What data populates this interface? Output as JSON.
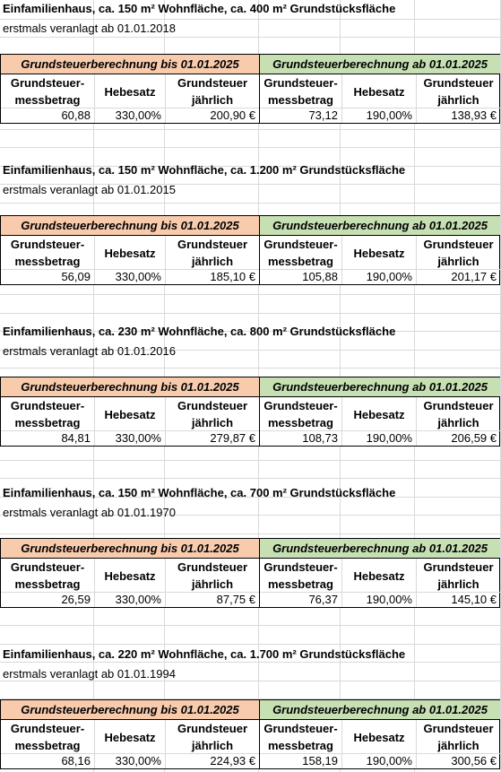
{
  "header_left": "Grundsteuerberechnung bis 01.01.2025",
  "header_right": "Grundsteuerberechnung ab 01.01.2025",
  "col_messbetrag": "Grundsteuer-\nmessbetrag",
  "col_hebesatz": "Hebesatz",
  "col_jaehrlich": "Grundsteuer\njährlich",
  "blocks": [
    {
      "title": "Einfamilienhaus, ca. 150 m² Wohnfläche, ca. 400 m² Grundstücksfläche",
      "subtitle": "erstmals veranlagt ab 01.01.2018",
      "before": {
        "messbetrag": "60,88",
        "hebesatz": "330,00%",
        "jaehrlich": "200,90 €"
      },
      "after": {
        "messbetrag": "73,12",
        "hebesatz": "190,00%",
        "jaehrlich": "138,93 €"
      }
    },
    {
      "title": "Einfamilienhaus, ca. 150 m² Wohnfläche, ca. 1.200 m² Grundstücksfläche",
      "subtitle": "erstmals veranlagt ab 01.01.2015",
      "before": {
        "messbetrag": "56,09",
        "hebesatz": "330,00%",
        "jaehrlich": "185,10 €"
      },
      "after": {
        "messbetrag": "105,88",
        "hebesatz": "190,00%",
        "jaehrlich": "201,17 €"
      }
    },
    {
      "title": "Einfamilienhaus, ca. 230 m² Wohnfläche, ca. 800 m² Grundstücksfläche",
      "subtitle": "erstmals veranlagt ab 01.01.2016",
      "before": {
        "messbetrag": "84,81",
        "hebesatz": "330,00%",
        "jaehrlich": "279,87 €"
      },
      "after": {
        "messbetrag": "108,73",
        "hebesatz": "190,00%",
        "jaehrlich": "206,59 €"
      }
    },
    {
      "title": "Einfamilienhaus, ca. 150 m² Wohnfläche, ca. 700 m² Grundstücksfläche",
      "subtitle": "erstmals veranlagt ab 01.01.1970",
      "before": {
        "messbetrag": "26,59",
        "hebesatz": "330,00%",
        "jaehrlich": "87,75 €"
      },
      "after": {
        "messbetrag": "76,37",
        "hebesatz": "190,00%",
        "jaehrlich": "145,10 €"
      }
    },
    {
      "title": "Einfamilienhaus, ca. 220 m² Wohnfläche, ca. 1.700 m² Grundstücksfläche",
      "subtitle": "erstmals veranlagt ab 01.01.1994",
      "before": {
        "messbetrag": "68,16",
        "hebesatz": "330,00%",
        "jaehrlich": "224,93 €"
      },
      "after": {
        "messbetrag": "158,19",
        "hebesatz": "190,00%",
        "jaehrlich": "300,56 €"
      }
    }
  ]
}
